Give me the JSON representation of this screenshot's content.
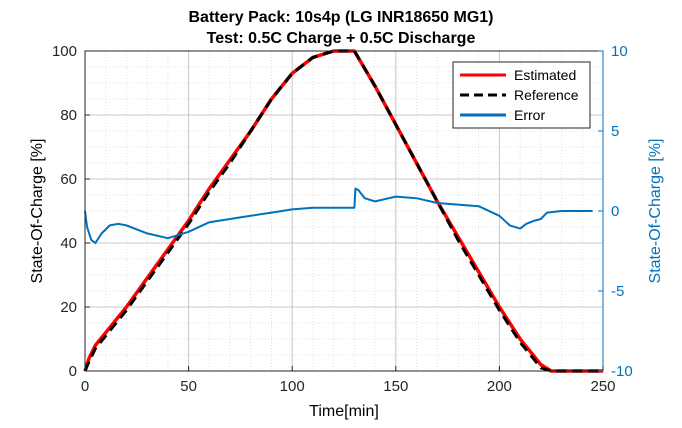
{
  "chart_data": {
    "type": "line",
    "title": "Battery Pack: 10s4p (LG INR18650 MG1)",
    "subtitle": "Test: 0.5C Charge + 0.5C Discharge",
    "xlabel": "Time[min]",
    "ylabel_left": "State-Of-Charge [%]",
    "ylabel_right": "State-Of-Charge [%]",
    "xlim": [
      0,
      250
    ],
    "ylim_left": [
      0,
      100
    ],
    "ylim_right": [
      -10,
      10
    ],
    "x_ticks": [
      "0",
      "50",
      "100",
      "150",
      "200",
      "250"
    ],
    "y_ticks_left": [
      "0",
      "20",
      "40",
      "60",
      "80",
      "100"
    ],
    "y_ticks_right": [
      "-10",
      "-5",
      "0",
      "5",
      "10"
    ],
    "grid": true,
    "minor_grid": true,
    "legend_position": "top-right",
    "series": [
      {
        "name": "Estimated",
        "axis": "left",
        "color": "#FF0000",
        "style": "solid",
        "x": [
          0,
          2,
          5,
          10,
          20,
          30,
          40,
          50,
          60,
          70,
          80,
          90,
          100,
          110,
          120,
          130,
          140,
          150,
          160,
          170,
          180,
          190,
          200,
          210,
          220,
          225,
          230,
          240,
          250
        ],
        "y": [
          0,
          4,
          8,
          12,
          20,
          29,
          38,
          47,
          57,
          66,
          75,
          85,
          93,
          98,
          100,
          100,
          89,
          77,
          65,
          53,
          42,
          31,
          20,
          10,
          2,
          0,
          0,
          0,
          0
        ]
      },
      {
        "name": "Reference",
        "axis": "left",
        "color": "#000000",
        "style": "dashed",
        "x": [
          0,
          2,
          5,
          10,
          20,
          30,
          40,
          50,
          60,
          70,
          80,
          90,
          100,
          110,
          120,
          130,
          140,
          150,
          160,
          170,
          180,
          190,
          200,
          210,
          220,
          225,
          230,
          240,
          250
        ],
        "y": [
          0,
          3,
          7,
          11,
          19,
          28,
          37,
          46,
          56,
          65,
          75,
          85,
          93,
          98,
          100,
          100,
          89,
          77,
          65,
          53,
          41,
          30,
          19,
          9,
          1,
          0,
          0,
          0,
          0
        ]
      },
      {
        "name": "Error",
        "axis": "right",
        "color": "#0072BD",
        "style": "solid",
        "x": [
          0,
          1,
          3,
          5,
          8,
          12,
          16,
          20,
          30,
          40,
          50,
          60,
          70,
          80,
          90,
          100,
          110,
          120,
          130,
          130.5,
          132,
          135,
          140,
          150,
          160,
          170,
          180,
          190,
          200,
          205,
          210,
          213,
          217,
          220,
          223,
          230,
          240,
          245
        ],
        "y": [
          0,
          -1,
          -1.8,
          -2,
          -1.4,
          -0.9,
          -0.8,
          -0.9,
          -1.4,
          -1.7,
          -1.3,
          -0.7,
          -0.5,
          -0.3,
          -0.1,
          0.1,
          0.2,
          0.2,
          0.2,
          1.4,
          1.3,
          0.8,
          0.6,
          0.9,
          0.8,
          0.5,
          0.4,
          0.3,
          -0.3,
          -0.9,
          -1.1,
          -0.8,
          -0.6,
          -0.5,
          -0.1,
          0,
          0,
          0
        ]
      }
    ]
  }
}
